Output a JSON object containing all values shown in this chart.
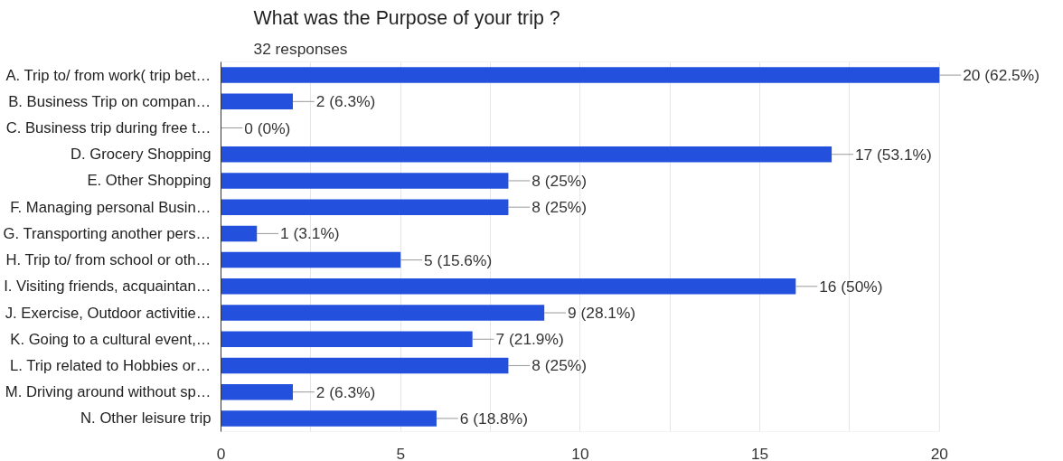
{
  "chart_data": {
    "type": "bar",
    "orientation": "horizontal",
    "title": "What was the Purpose of your trip ?",
    "subtitle": "32 responses",
    "categories": [
      "A. Trip to/ from work( trip bet…",
      "B. Business Trip on compan…",
      "C. Business trip during free t…",
      "D. Grocery Shopping",
      "E. Other Shopping",
      "F. Managing personal Busin…",
      "G. Transporting another pers…",
      "H. Trip to/ from school or oth…",
      "I. Visiting friends, acquaintan…",
      "J. Exercise, Outdoor activitie…",
      "K. Going to a cultural event,…",
      "L. Trip related to Hobbies or…",
      "M. Driving around without sp…",
      "N. Other leisure trip"
    ],
    "values": [
      20,
      2,
      0,
      17,
      8,
      8,
      1,
      5,
      16,
      9,
      7,
      8,
      2,
      6
    ],
    "value_labels": [
      "20 (62.5%)",
      "2 (6.3%)",
      "0 (0%)",
      "17 (53.1%)",
      "8 (25%)",
      "8 (25%)",
      "1 (3.1%)",
      "5 (15.6%)",
      "16 (50%)",
      "9 (28.1%)",
      "7 (21.9%)",
      "8 (25%)",
      "2 (6.3%)",
      "6 (18.8%)"
    ],
    "color": "#2350dc",
    "xlim": [
      0,
      20
    ],
    "xticks": [
      0,
      {
        "value": 2.5,
        "label": null
      },
      5,
      {
        "value": 7.5,
        "label": null
      },
      10,
      {
        "value": 12.5,
        "label": null
      },
      15,
      {
        "value": 17.5,
        "label": null
      },
      20
    ],
    "grid": "x"
  }
}
